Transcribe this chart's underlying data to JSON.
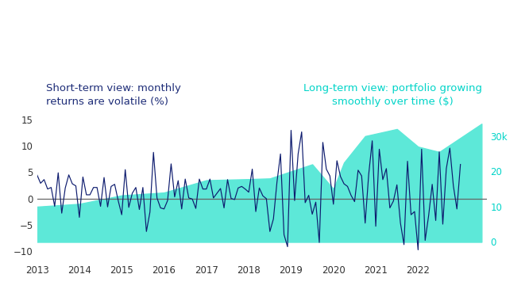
{
  "title_left": "Short-term view: monthly\nreturns are volatile (%)",
  "title_right": "Long-term view: portfolio growing\nsmoothly over time ($)",
  "title_left_color": "#1e2d78",
  "title_right_color": "#00d4c8",
  "background_color": "#ffffff",
  "line_color": "#0d1b6e",
  "fill_color": "#5de8d8",
  "fill_alpha": 1.0,
  "zero_line_color": "#666666",
  "ylim_left": [
    -12,
    22
  ],
  "ylim_right": [
    -5500,
    45000
  ],
  "yticks_left": [
    -10,
    -5,
    0,
    5,
    10,
    15
  ],
  "yticks_right": [
    0,
    10000,
    20000,
    30000
  ],
  "ytick_labels_right": [
    "0",
    "10",
    "20",
    "30k"
  ],
  "xlim": [
    2013.0,
    2023.62
  ],
  "xtick_years": [
    2013,
    2014,
    2015,
    2016,
    2017,
    2018,
    2019,
    2020,
    2021,
    2022
  ],
  "monthly_returns": [
    4.5,
    2.9,
    3.6,
    1.8,
    2.1,
    -1.5,
    4.9,
    -2.8,
    2.0,
    4.5,
    2.8,
    2.4,
    -3.6,
    4.1,
    0.7,
    0.7,
    2.1,
    2.1,
    -1.5,
    4.0,
    -1.6,
    2.3,
    2.7,
    -0.4,
    -3.1,
    5.5,
    -1.7,
    1.0,
    2.1,
    -2.1,
    2.1,
    -6.3,
    -2.6,
    8.8,
    0.1,
    -1.8,
    -2.0,
    -0.4,
    6.6,
    0.3,
    3.4,
    -2.0,
    3.7,
    0.1,
    -0.1,
    -1.9,
    3.7,
    1.8,
    1.8,
    3.7,
    0.1,
    1.0,
    1.9,
    -1.8,
    3.6,
    0.0,
    -0.2,
    2.0,
    2.3,
    1.8,
    1.2,
    5.6,
    -2.5,
    2.0,
    0.5,
    -0.04,
    -6.3,
    -3.9,
    3.1,
    8.5,
    -6.9,
    -9.2,
    13.0,
    -0.4,
    8.5,
    12.7,
    -0.8,
    0.6,
    -3.0,
    -0.7,
    -8.4,
    10.7,
    5.6,
    4.3,
    -1.1,
    7.2,
    4.2,
    2.8,
    2.3,
    0.6,
    -0.6,
    5.4,
    4.3,
    -4.7,
    4.6,
    11.0,
    -5.3,
    9.4,
    3.6,
    5.7,
    -1.8,
    -0.5,
    2.6,
    -4.7,
    -8.8,
    7.1,
    -3.1,
    -2.5,
    -9.8,
    9.4,
    -8.0,
    -3.2,
    2.7,
    -4.2,
    8.9,
    -4.9,
    5.7,
    9.6,
    2.4,
    -2.0,
    6.5
  ],
  "portfolio_dates": [
    2013.0,
    2014.0,
    2015.0,
    2016.0,
    2017.0,
    2018.0,
    2018.5,
    2019.5,
    2020.0,
    2020.25,
    2020.75,
    2021.5,
    2022.0,
    2022.5,
    2023.5
  ],
  "portfolio_values": [
    10000,
    10800,
    13200,
    14000,
    17500,
    17800,
    18000,
    22000,
    15000,
    22500,
    30000,
    32000,
    27000,
    25500,
    33500
  ]
}
